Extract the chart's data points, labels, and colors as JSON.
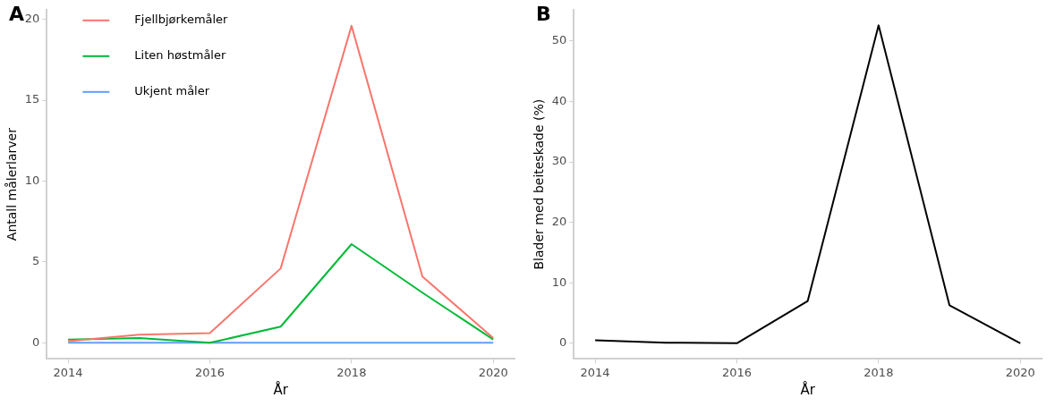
{
  "chart_data": [
    {
      "type": "line",
      "annotations": [
        "A"
      ],
      "xlabel": "År",
      "ylabel": "Antall målerlarver",
      "x": [
        2014,
        2015,
        2016,
        2017,
        2018,
        2019,
        2020
      ],
      "xlim": [
        2013.7,
        2020.3
      ],
      "xticks": [
        2014,
        2016,
        2018,
        2020
      ],
      "ylim": [
        -1,
        20.6
      ],
      "yticks": [
        0,
        5,
        10,
        15,
        20
      ],
      "grid": false,
      "legend": "top left",
      "series": [
        {
          "name": "Fjellbjørkemåler",
          "color": "#f8766d",
          "values": [
            0.1,
            0.5,
            0.6,
            4.6,
            19.6,
            4.1,
            0.3
          ]
        },
        {
          "name": "Liten høstmåler",
          "color": "#00ba38",
          "values": [
            0.2,
            0.3,
            0.0,
            1.0,
            6.1,
            3.1,
            0.2
          ]
        },
        {
          "name": "Ukjent måler",
          "color": "#619cff",
          "values": [
            0,
            0,
            0,
            0,
            0,
            0,
            0
          ]
        }
      ]
    },
    {
      "type": "line",
      "annotations": [
        "B"
      ],
      "xlabel": "År",
      "ylabel": "Blader med beiteskade (%)",
      "x": [
        2014,
        2015,
        2016,
        2017,
        2018,
        2019,
        2020
      ],
      "xlim": [
        2013.7,
        2020.3
      ],
      "xticks": [
        2014,
        2016,
        2018,
        2020
      ],
      "ylim": [
        -2.6,
        55.2
      ],
      "yticks": [
        0,
        10,
        20,
        30,
        40,
        50
      ],
      "grid": false,
      "legend": false,
      "series": [
        {
          "color": "#000000",
          "values": [
            0.5,
            0.1,
            0,
            7,
            52.6,
            6.3,
            0
          ]
        }
      ]
    }
  ]
}
